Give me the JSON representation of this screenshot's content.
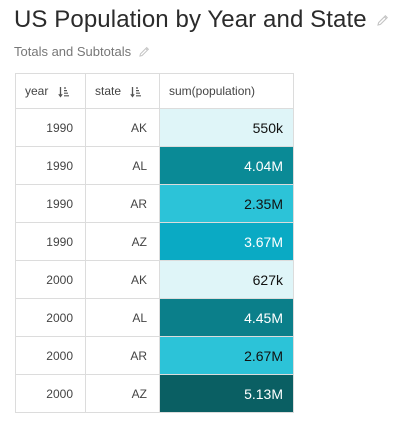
{
  "title": "US Population by Year and State",
  "subtitle": "Totals and Subtotals",
  "table": {
    "headers": {
      "year": "year",
      "state": "state",
      "value": "sum(population)"
    },
    "rows": [
      {
        "year": "1990",
        "state": "AK",
        "value": "550k",
        "color": "#dff5f8",
        "text_color": "#111111"
      },
      {
        "year": "1990",
        "state": "AL",
        "value": "4.04M",
        "color": "#0a8a96",
        "text_color": "#ffffff"
      },
      {
        "year": "1990",
        "state": "AR",
        "value": "2.35M",
        "color": "#2cc3d8",
        "text_color": "#111111"
      },
      {
        "year": "1990",
        "state": "AZ",
        "value": "3.67M",
        "color": "#0aaac4",
        "text_color": "#ffffff"
      },
      {
        "year": "2000",
        "state": "AK",
        "value": "627k",
        "color": "#dff5f8",
        "text_color": "#111111"
      },
      {
        "year": "2000",
        "state": "AL",
        "value": "4.45M",
        "color": "#0b7f8a",
        "text_color": "#ffffff"
      },
      {
        "year": "2000",
        "state": "AR",
        "value": "2.67M",
        "color": "#2cc3d8",
        "text_color": "#111111"
      },
      {
        "year": "2000",
        "state": "AZ",
        "value": "5.13M",
        "color": "#0a5f63",
        "text_color": "#ffffff"
      }
    ]
  },
  "icons": {
    "edit": "pencil-icon",
    "sort": "sort-ascending-icon"
  }
}
